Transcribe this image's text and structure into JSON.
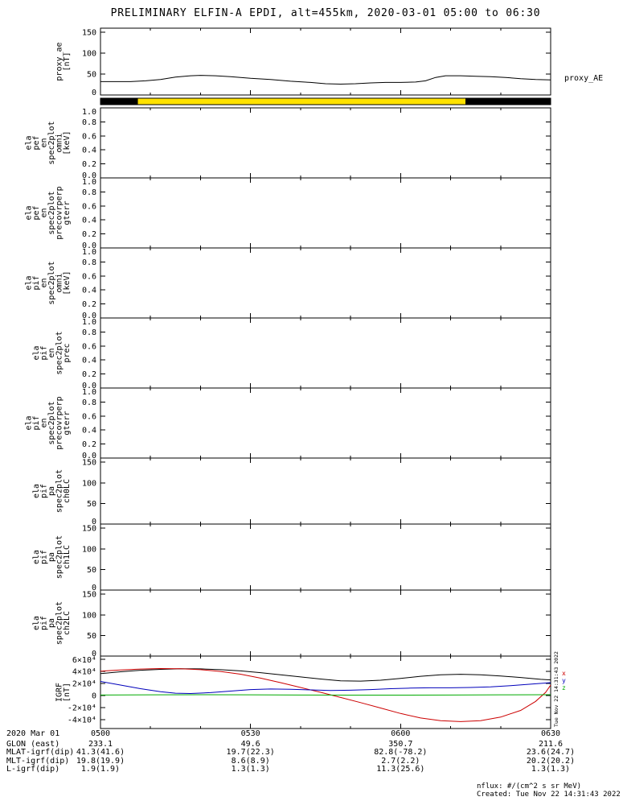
{
  "title": "PRELIMINARY ELFIN-A EPDI, alt=455km, 2020-03-01 05:00 to 06:30",
  "right_label": "proxy_AE",
  "side_timestamp": "Tue Nov 22 14:31:43 2022",
  "footer": {
    "nflux": "nflux: #/(cm^2 s sr MeV)",
    "created": "Created: Tue Nov 22 14:31:43 2022"
  },
  "bottom_table": {
    "date": "2020 Mar 01",
    "rows": [
      {
        "label": "",
        "values": [
          "0500",
          "0530",
          "0600",
          "0630"
        ]
      },
      {
        "label": "GLON (east)",
        "values": [
          "233.1",
          "49.6",
          "350.7",
          "211.6"
        ]
      },
      {
        "label": "MLAT-igrf(dip)",
        "values": [
          "41.3(41.6)",
          "19.7(22.3)",
          "82.8(-78.2)",
          "23.6(24.7)"
        ]
      },
      {
        "label": "MLT-igrf(dip)",
        "values": [
          "19.8(19.9)",
          "8.6(8.9)",
          "2.7(2.2)",
          "20.2(20.2)"
        ]
      },
      {
        "label": "L-igrf(dip)",
        "values": [
          "1.9(1.9)",
          "1.3(1.3)",
          "11.3(25.6)",
          "1.3(1.3)"
        ]
      }
    ]
  },
  "igrf_legend": [
    {
      "label": "x",
      "color": "#cc0000"
    },
    {
      "label": "y",
      "color": "#0000bb"
    },
    {
      "label": "z",
      "color": "#00aa00"
    }
  ],
  "chart_data": {
    "type": "line",
    "x_range_minutes": [
      0,
      90
    ],
    "x_start_time": "05:00",
    "x_end_time": "06:30",
    "xaxis": {
      "major_t": [
        0,
        30,
        60,
        90
      ],
      "minor_t": [
        10,
        20,
        40,
        50,
        70,
        80
      ]
    },
    "status_bar": {
      "segments": [
        {
          "t0": 0,
          "t1": 7.5,
          "color": "#000000"
        },
        {
          "t0": 7.5,
          "t1": 73,
          "color": "#ffe200"
        },
        {
          "t0": 73,
          "t1": 90,
          "color": "#000000"
        }
      ]
    },
    "panels": [
      {
        "id": "proxy_ae",
        "label": "proxy_ae\n[nT]",
        "ymin": 0,
        "ymax": 160,
        "yticks": [
          {
            "v": 0,
            "label": "0"
          },
          {
            "v": 50,
            "label": "50"
          },
          {
            "v": 100,
            "label": "100"
          },
          {
            "v": 150,
            "label": "150"
          }
        ],
        "series": [
          {
            "name": "proxy_AE",
            "color": "#000000",
            "points": [
              [
                0,
                32
              ],
              [
                3,
                32
              ],
              [
                6,
                32
              ],
              [
                9,
                34
              ],
              [
                12,
                37
              ],
              [
                15,
                43
              ],
              [
                18,
                46
              ],
              [
                20,
                47
              ],
              [
                23,
                46
              ],
              [
                26,
                44
              ],
              [
                30,
                40
              ],
              [
                34,
                37
              ],
              [
                38,
                33
              ],
              [
                42,
                30
              ],
              [
                45,
                27
              ],
              [
                48,
                26
              ],
              [
                51,
                27
              ],
              [
                54,
                29
              ],
              [
                57,
                30
              ],
              [
                60,
                30
              ],
              [
                63,
                31
              ],
              [
                65,
                34
              ],
              [
                67,
                42
              ],
              [
                69,
                46
              ],
              [
                72,
                46
              ],
              [
                75,
                45
              ],
              [
                78,
                44
              ],
              [
                81,
                42
              ],
              [
                84,
                39
              ],
              [
                87,
                37
              ],
              [
                90,
                36
              ]
            ]
          }
        ]
      },
      {
        "id": "ela_pef_en_omni",
        "label": "ela\npef\nen\nspec2plot\nomni\n[keV]",
        "ymin": 0,
        "ymax": 1,
        "yticks": [
          {
            "v": 1,
            "label": "1.0"
          },
          {
            "v": 0.8,
            "label": "0.8"
          },
          {
            "v": 0.6,
            "label": "0.6"
          },
          {
            "v": 0.4,
            "label": "0.4"
          },
          {
            "v": 0.2,
            "label": "0.2"
          },
          {
            "v": 0,
            "label": "0.0"
          }
        ],
        "series": []
      },
      {
        "id": "ela_pef_en_precovrperp",
        "label": "ela\npef\nen\nspec2plot\nprecovrperp\ngterr",
        "ymin": 0,
        "ymax": 1,
        "yticks": [
          {
            "v": 1,
            "label": "1.0"
          },
          {
            "v": 0.8,
            "label": "0.8"
          },
          {
            "v": 0.6,
            "label": "0.6"
          },
          {
            "v": 0.4,
            "label": "0.4"
          },
          {
            "v": 0.2,
            "label": "0.2"
          },
          {
            "v": 0,
            "label": "0.0"
          }
        ],
        "series": []
      },
      {
        "id": "ela_pif_en_omni",
        "label": "ela\npif\nen\nspec2plot\nomni\n[keV]",
        "ymin": 0,
        "ymax": 1,
        "yticks": [
          {
            "v": 1,
            "label": "1.0"
          },
          {
            "v": 0.8,
            "label": "0.8"
          },
          {
            "v": 0.6,
            "label": "0.6"
          },
          {
            "v": 0.4,
            "label": "0.4"
          },
          {
            "v": 0.2,
            "label": "0.2"
          },
          {
            "v": 0,
            "label": "0.0"
          }
        ],
        "series": []
      },
      {
        "id": "ela_pif_en_prec",
        "label": "ela\npif\nen\nspec2plot\nprec",
        "ymin": 0,
        "ymax": 1,
        "yticks": [
          {
            "v": 1,
            "label": "1.0"
          },
          {
            "v": 0.8,
            "label": "0.8"
          },
          {
            "v": 0.6,
            "label": "0.6"
          },
          {
            "v": 0.4,
            "label": "0.4"
          },
          {
            "v": 0.2,
            "label": "0.2"
          },
          {
            "v": 0,
            "label": "0.0"
          }
        ],
        "series": []
      },
      {
        "id": "ela_pif_en_precovrperp",
        "label": "ela\npif\nen\nspec2plot\nprecovrperp\ngterr",
        "ymin": 0,
        "ymax": 1,
        "yticks": [
          {
            "v": 1,
            "label": "1.0"
          },
          {
            "v": 0.8,
            "label": "0.8"
          },
          {
            "v": 0.6,
            "label": "0.6"
          },
          {
            "v": 0.4,
            "label": "0.4"
          },
          {
            "v": 0.2,
            "label": "0.2"
          },
          {
            "v": 0,
            "label": "0.0"
          }
        ],
        "series": []
      },
      {
        "id": "ela_pif_pa_ch0LC",
        "label": "ela\npif\npa\nspec2plot\nch0LC",
        "ymin": 0,
        "ymax": 160,
        "yticks": [
          {
            "v": 150,
            "label": "150"
          },
          {
            "v": 100,
            "label": "100"
          },
          {
            "v": 50,
            "label": "50"
          },
          {
            "v": 0,
            "label": "0"
          }
        ],
        "series": []
      },
      {
        "id": "ela_pif_pa_ch1LC",
        "label": "ela\npif\npa\nspec2plot\nch1LC",
        "ymin": 0,
        "ymax": 160,
        "yticks": [
          {
            "v": 150,
            "label": "150"
          },
          {
            "v": 100,
            "label": "100"
          },
          {
            "v": 50,
            "label": "50"
          },
          {
            "v": 0,
            "label": "0"
          }
        ],
        "series": []
      },
      {
        "id": "ela_pif_pa_ch2LC",
        "label": "ela\npif\npa\nspec2plot\nch2LC",
        "ymin": 0,
        "ymax": 160,
        "yticks": [
          {
            "v": 150,
            "label": "150"
          },
          {
            "v": 100,
            "label": "100"
          },
          {
            "v": 50,
            "label": "50"
          },
          {
            "v": 0,
            "label": "0"
          }
        ],
        "series": []
      },
      {
        "id": "igrf",
        "label": "IGRF\n[nT]",
        "ymin": -55000,
        "ymax": 65000,
        "yticks": [
          {
            "v": 60000,
            "label": "6×10⁴"
          },
          {
            "v": 40000,
            "label": "4×10⁴"
          },
          {
            "v": 20000,
            "label": "2×10⁴"
          },
          {
            "v": 0,
            "label": "0"
          },
          {
            "v": -20000,
            "label": "-2×10⁴"
          },
          {
            "v": -40000,
            "label": "-4×10⁴"
          }
        ],
        "series": [
          {
            "name": "igrf_bt",
            "color": "#000000",
            "points": [
              [
                0,
                36000
              ],
              [
                4,
                39000
              ],
              [
                8,
                41500
              ],
              [
                12,
                43000
              ],
              [
                16,
                44000
              ],
              [
                20,
                43800
              ],
              [
                24,
                42500
              ],
              [
                28,
                40500
              ],
              [
                32,
                37500
              ],
              [
                36,
                34000
              ],
              [
                40,
                30500
              ],
              [
                44,
                27000
              ],
              [
                48,
                24000
              ],
              [
                52,
                23500
              ],
              [
                56,
                25000
              ],
              [
                60,
                28000
              ],
              [
                64,
                31500
              ],
              [
                68,
                34000
              ],
              [
                72,
                34800
              ],
              [
                76,
                34000
              ],
              [
                80,
                32000
              ],
              [
                84,
                29500
              ],
              [
                88,
                26500
              ],
              [
                90,
                25500
              ]
            ]
          },
          {
            "name": "igrf_x",
            "color": "#cc0000",
            "points": [
              [
                0,
                40000
              ],
              [
                4,
                42000
              ],
              [
                8,
                43500
              ],
              [
                12,
                44300
              ],
              [
                16,
                44000
              ],
              [
                20,
                42500
              ],
              [
                24,
                39500
              ],
              [
                28,
                35000
              ],
              [
                32,
                28500
              ],
              [
                36,
                21000
              ],
              [
                40,
                13000
              ],
              [
                44,
                5000
              ],
              [
                48,
                -3500
              ],
              [
                52,
                -12000
              ],
              [
                56,
                -21000
              ],
              [
                60,
                -30000
              ],
              [
                64,
                -37500
              ],
              [
                68,
                -42000
              ],
              [
                72,
                -43500
              ],
              [
                76,
                -42000
              ],
              [
                80,
                -36000
              ],
              [
                84,
                -25000
              ],
              [
                87,
                -10000
              ],
              [
                89,
                5000
              ],
              [
                90,
                17000
              ]
            ]
          },
          {
            "name": "igrf_y",
            "color": "#0000bb",
            "points": [
              [
                0,
                23000
              ],
              [
                4,
                17000
              ],
              [
                8,
                11000
              ],
              [
                12,
                6000
              ],
              [
                15,
                3500
              ],
              [
                18,
                3000
              ],
              [
                22,
                4500
              ],
              [
                26,
                7000
              ],
              [
                30,
                9500
              ],
              [
                34,
                10500
              ],
              [
                38,
                10000
              ],
              [
                42,
                9000
              ],
              [
                46,
                8000
              ],
              [
                50,
                8500
              ],
              [
                54,
                9500
              ],
              [
                58,
                11000
              ],
              [
                62,
                12000
              ],
              [
                66,
                12500
              ],
              [
                70,
                12500
              ],
              [
                74,
                13000
              ],
              [
                78,
                14000
              ],
              [
                82,
                16000
              ],
              [
                86,
                18500
              ],
              [
                90,
                21000
              ]
            ]
          },
          {
            "name": "igrf_z",
            "color": "#00aa00",
            "points": [
              [
                0,
                500
              ],
              [
                10,
                800
              ],
              [
                20,
                1000
              ],
              [
                30,
                800
              ],
              [
                40,
                500
              ],
              [
                50,
                300
              ],
              [
                60,
                300
              ],
              [
                70,
                500
              ],
              [
                80,
                800
              ],
              [
                90,
                1000
              ]
            ]
          }
        ]
      }
    ]
  }
}
